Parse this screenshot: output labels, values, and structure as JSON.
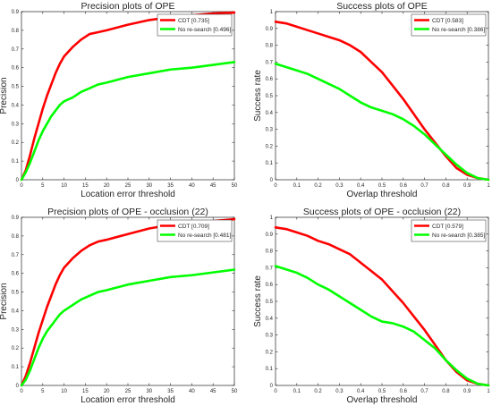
{
  "chart_data": [
    {
      "type": "line",
      "title": "Precision plots of OPE",
      "xlabel": "Location error threshold",
      "ylabel": "Precision",
      "xlim": [
        0,
        50
      ],
      "ylim": [
        0,
        0.9
      ],
      "xticks": [
        "0",
        "5",
        "10",
        "15",
        "20",
        "25",
        "30",
        "35",
        "40",
        "45",
        "50"
      ],
      "yticks": [
        "0",
        "0.1",
        "0.2",
        "0.3",
        "0.4",
        "0.5",
        "0.6",
        "0.7",
        "0.8",
        "0.9"
      ],
      "grid": false,
      "legend_position": "top-right",
      "series": [
        {
          "name": "CDT [0.735]",
          "color": "#ff0000",
          "x": [
            0,
            1,
            2,
            3,
            4,
            5,
            6,
            7,
            8,
            9,
            10,
            12,
            14,
            16,
            18,
            20,
            25,
            30,
            35,
            40,
            45,
            50
          ],
          "y": [
            0,
            0.05,
            0.13,
            0.22,
            0.3,
            0.38,
            0.45,
            0.51,
            0.57,
            0.62,
            0.66,
            0.71,
            0.75,
            0.78,
            0.79,
            0.8,
            0.83,
            0.855,
            0.87,
            0.88,
            0.89,
            0.895
          ]
        },
        {
          "name": "No re-search [0.496]",
          "color": "#00ff00",
          "x": [
            0,
            1,
            2,
            3,
            4,
            5,
            6,
            7,
            8,
            9,
            10,
            12,
            14,
            16,
            18,
            20,
            25,
            30,
            35,
            40,
            45,
            50
          ],
          "y": [
            0,
            0.04,
            0.09,
            0.15,
            0.21,
            0.26,
            0.3,
            0.34,
            0.37,
            0.4,
            0.42,
            0.44,
            0.47,
            0.49,
            0.51,
            0.52,
            0.55,
            0.57,
            0.59,
            0.6,
            0.615,
            0.63
          ]
        }
      ]
    },
    {
      "type": "line",
      "title": "Success plots of OPE",
      "xlabel": "Overlap threshold",
      "ylabel": "Success rate",
      "xlim": [
        0,
        1
      ],
      "ylim": [
        0,
        1
      ],
      "xticks": [
        "0",
        "0.1",
        "0.2",
        "0.3",
        "0.4",
        "0.5",
        "0.6",
        "0.7",
        "0.8",
        "0.9",
        "1"
      ],
      "yticks": [
        "0",
        "0.1",
        "0.2",
        "0.3",
        "0.4",
        "0.5",
        "0.6",
        "0.7",
        "0.8",
        "0.9",
        "1"
      ],
      "grid": false,
      "legend_position": "top-right",
      "series": [
        {
          "name": "CDT [0.583]",
          "color": "#ff0000",
          "x": [
            0,
            0.05,
            0.1,
            0.15,
            0.2,
            0.25,
            0.3,
            0.35,
            0.4,
            0.45,
            0.5,
            0.55,
            0.6,
            0.65,
            0.7,
            0.75,
            0.8,
            0.85,
            0.9,
            0.95,
            1
          ],
          "y": [
            0.94,
            0.93,
            0.91,
            0.89,
            0.87,
            0.85,
            0.83,
            0.8,
            0.76,
            0.7,
            0.64,
            0.56,
            0.48,
            0.39,
            0.3,
            0.22,
            0.14,
            0.07,
            0.03,
            0.01,
            0
          ]
        },
        {
          "name": "No re-search [0.386]",
          "color": "#00ff00",
          "x": [
            0,
            0.05,
            0.1,
            0.15,
            0.2,
            0.25,
            0.3,
            0.35,
            0.4,
            0.45,
            0.5,
            0.55,
            0.6,
            0.65,
            0.7,
            0.75,
            0.8,
            0.85,
            0.9,
            0.95,
            1
          ],
          "y": [
            0.69,
            0.67,
            0.65,
            0.63,
            0.6,
            0.57,
            0.54,
            0.5,
            0.46,
            0.43,
            0.41,
            0.39,
            0.36,
            0.32,
            0.27,
            0.21,
            0.15,
            0.09,
            0.04,
            0.01,
            0
          ]
        }
      ]
    },
    {
      "type": "line",
      "title": "Precision plots of OPE - occlusion (22)",
      "xlabel": "Location error threshold",
      "ylabel": "Precision",
      "xlim": [
        0,
        50
      ],
      "ylim": [
        0,
        0.9
      ],
      "xticks": [
        "0",
        "5",
        "10",
        "15",
        "20",
        "25",
        "30",
        "35",
        "40",
        "45",
        "50"
      ],
      "yticks": [
        "0",
        "0.1",
        "0.2",
        "0.3",
        "0.4",
        "0.5",
        "0.6",
        "0.7",
        "0.8",
        "0.9"
      ],
      "grid": false,
      "legend_position": "top-right",
      "series": [
        {
          "name": "CDT [0.709]",
          "color": "#ff0000",
          "x": [
            0,
            1,
            2,
            3,
            4,
            5,
            6,
            7,
            8,
            9,
            10,
            12,
            14,
            16,
            18,
            20,
            25,
            30,
            35,
            40,
            45,
            50
          ],
          "y": [
            0,
            0.05,
            0.12,
            0.2,
            0.28,
            0.35,
            0.42,
            0.48,
            0.54,
            0.59,
            0.63,
            0.68,
            0.72,
            0.75,
            0.77,
            0.78,
            0.81,
            0.84,
            0.86,
            0.87,
            0.88,
            0.89
          ]
        },
        {
          "name": "No re-search [0.481]",
          "color": "#00ff00",
          "x": [
            0,
            1,
            2,
            3,
            4,
            5,
            6,
            7,
            8,
            9,
            10,
            12,
            14,
            16,
            18,
            20,
            25,
            30,
            35,
            40,
            45,
            50
          ],
          "y": [
            0,
            0.03,
            0.08,
            0.14,
            0.2,
            0.25,
            0.29,
            0.32,
            0.35,
            0.38,
            0.4,
            0.43,
            0.46,
            0.48,
            0.5,
            0.51,
            0.54,
            0.56,
            0.58,
            0.59,
            0.605,
            0.62
          ]
        }
      ]
    },
    {
      "type": "line",
      "title": "Success plots of OPE - occlusion (22)",
      "xlabel": "Overlap threshold",
      "ylabel": "Success rate",
      "xlim": [
        0,
        1
      ],
      "ylim": [
        0,
        1
      ],
      "xticks": [
        "0",
        "0.1",
        "0.2",
        "0.3",
        "0.4",
        "0.5",
        "0.6",
        "0.7",
        "0.8",
        "0.9",
        "1"
      ],
      "yticks": [
        "0",
        "0.1",
        "0.2",
        "0.3",
        "0.4",
        "0.5",
        "0.6",
        "0.7",
        "0.8",
        "0.9",
        "1"
      ],
      "grid": false,
      "legend_position": "top-right",
      "series": [
        {
          "name": "CDT [0.579]",
          "color": "#ff0000",
          "x": [
            0,
            0.05,
            0.1,
            0.15,
            0.2,
            0.25,
            0.3,
            0.35,
            0.4,
            0.45,
            0.5,
            0.55,
            0.6,
            0.65,
            0.7,
            0.75,
            0.8,
            0.85,
            0.9,
            0.95,
            1
          ],
          "y": [
            0.94,
            0.93,
            0.91,
            0.89,
            0.86,
            0.84,
            0.81,
            0.78,
            0.73,
            0.68,
            0.63,
            0.56,
            0.49,
            0.41,
            0.33,
            0.24,
            0.15,
            0.08,
            0.03,
            0.01,
            0
          ]
        },
        {
          "name": "No re-search [0.385]",
          "color": "#00ff00",
          "x": [
            0,
            0.05,
            0.1,
            0.15,
            0.2,
            0.25,
            0.3,
            0.35,
            0.4,
            0.45,
            0.5,
            0.55,
            0.6,
            0.65,
            0.7,
            0.75,
            0.8,
            0.85,
            0.9,
            0.95,
            1
          ],
          "y": [
            0.71,
            0.69,
            0.67,
            0.64,
            0.6,
            0.57,
            0.53,
            0.49,
            0.45,
            0.41,
            0.38,
            0.37,
            0.35,
            0.32,
            0.27,
            0.22,
            0.15,
            0.09,
            0.04,
            0.01,
            0
          ]
        }
      ]
    }
  ]
}
